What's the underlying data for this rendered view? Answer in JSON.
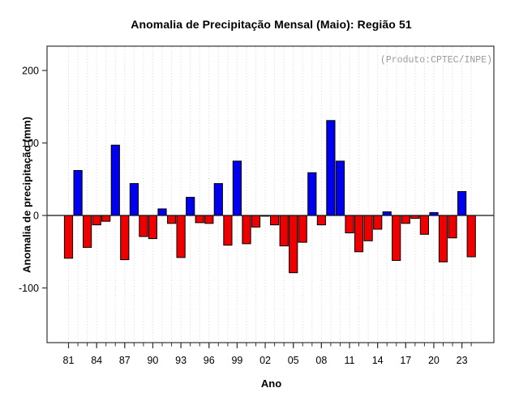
{
  "chart_data": {
    "type": "bar",
    "title": "Anomalia de Precipitação Mensal (Maio): Região 51",
    "xlabel": "Ano",
    "ylabel": "Anomalia de precipitação (mm)",
    "annotation": "(Produto:CPTEC/INPE)",
    "grid": "vertical dotted line per year",
    "legend": "none",
    "ylim": [
      -175,
      233
    ],
    "y_ticks": [
      {
        "value": 200,
        "label": "200"
      },
      {
        "value": 100,
        "label": "100"
      },
      {
        "value": 0,
        "label": "0"
      },
      {
        "value": -100,
        "label": "-100"
      }
    ],
    "x_ticks": [
      {
        "year": 1981,
        "label": "81"
      },
      {
        "year": 1984,
        "label": "84"
      },
      {
        "year": 1987,
        "label": "87"
      },
      {
        "year": 1990,
        "label": "90"
      },
      {
        "year": 1993,
        "label": "93"
      },
      {
        "year": 1996,
        "label": "96"
      },
      {
        "year": 1999,
        "label": "99"
      },
      {
        "year": 2002,
        "label": "02"
      },
      {
        "year": 2005,
        "label": "05"
      },
      {
        "year": 2008,
        "label": "08"
      },
      {
        "year": 2011,
        "label": "11"
      },
      {
        "year": 2014,
        "label": "14"
      },
      {
        "year": 2017,
        "label": "17"
      },
      {
        "year": 2020,
        "label": "20"
      },
      {
        "year": 2023,
        "label": "23"
      }
    ],
    "years": [
      1981,
      1982,
      1983,
      1984,
      1985,
      1986,
      1987,
      1988,
      1989,
      1990,
      1991,
      1992,
      1993,
      1994,
      1995,
      1996,
      1997,
      1998,
      1999,
      2000,
      2001,
      2002,
      2003,
      2004,
      2005,
      2006,
      2007,
      2008,
      2009,
      2010,
      2011,
      2012,
      2013,
      2014,
      2015,
      2016,
      2017,
      2018,
      2019,
      2020,
      2021,
      2022,
      2023,
      2024
    ],
    "values": [
      -59,
      62,
      -44,
      -13,
      -8,
      97,
      -61,
      44,
      -29,
      -32,
      9,
      -11,
      -58,
      25,
      -10,
      -11,
      44,
      -41,
      75,
      -39,
      -16,
      -1,
      -13,
      -42,
      -79,
      -37,
      59,
      -13,
      131,
      75,
      -24,
      -50,
      -35,
      -19,
      5,
      -62,
      -11,
      -4,
      -26,
      4,
      -64,
      -31,
      33,
      -57
    ],
    "positive_color": "#0000ee",
    "negative_color": "#ee0000",
    "bar_border_color": "#000000",
    "grid_color": "#d6d6d6",
    "axis_color": "#333333",
    "annotation_color": "#9a9a9a"
  }
}
